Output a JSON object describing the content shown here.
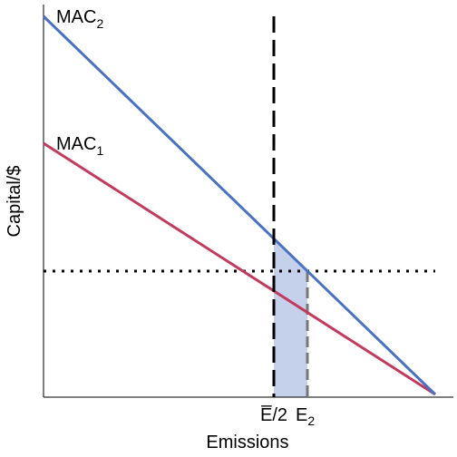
{
  "y_axis_label": "Capital/$",
  "x_axis_label": "Emissions",
  "curves": [
    {
      "label": "MAC",
      "subscript": "2",
      "color": "#4a72c4"
    },
    {
      "label": "MAC",
      "subscript": "1",
      "color": "#c23b5e"
    }
  ],
  "markers": [
    {
      "label": "E̅/2"
    },
    {
      "label": "E",
      "subscript": "2"
    }
  ]
}
